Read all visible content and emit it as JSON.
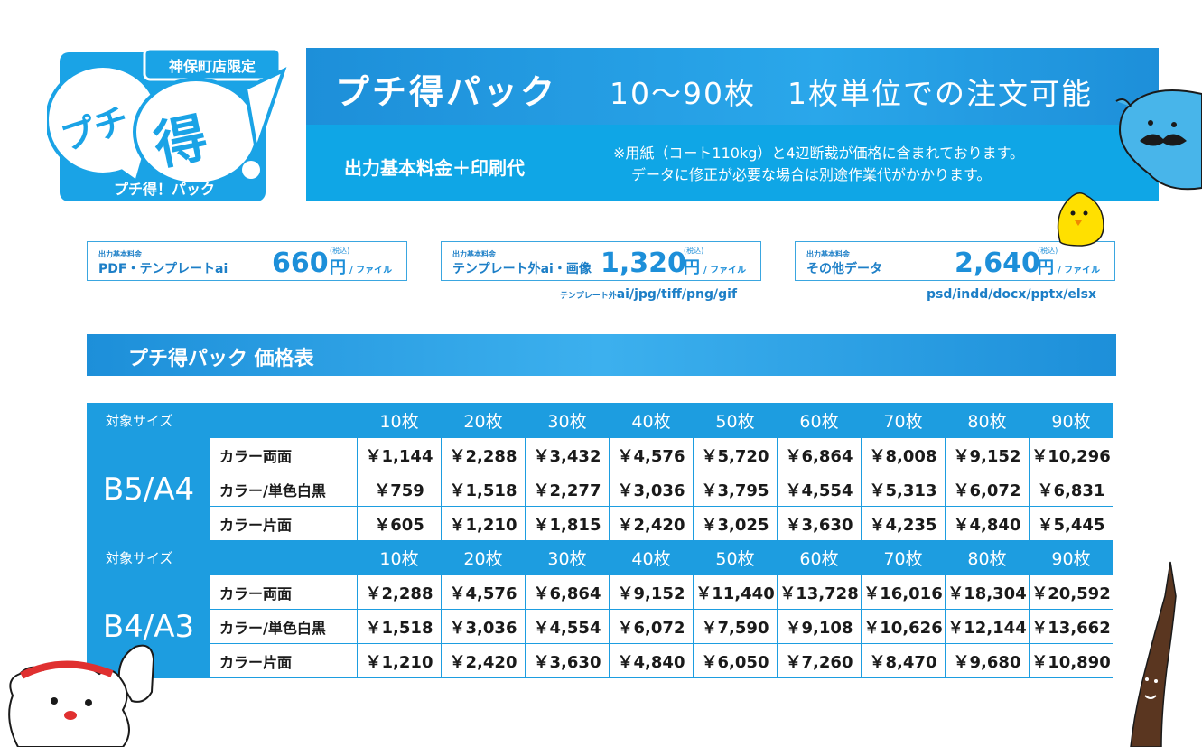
{
  "logo": {
    "limited": "神保町店限定",
    "puchi": "プチ",
    "toku": "得",
    "subtitle": "プチ得！パック"
  },
  "hero": {
    "title": "プチ得パック",
    "subtitle": "10〜90枚　1枚単位での注文可能",
    "formula": "出力基本料金＋印刷代",
    "note1": "※用紙（コート110kg）と4辺断裁が価格に含まれております。",
    "note2": "データに修正が必要な場合は別途作業代がかかります。"
  },
  "cards": [
    {
      "small": "出力基本料金",
      "name": "PDF・テンプレートai",
      "price": "660",
      "yen": "円",
      "tax": "(税込)",
      "unit": "/ ファイル",
      "formats_prefix": "",
      "formats": ""
    },
    {
      "small": "出力基本料金",
      "name": "テンプレート外ai・画像",
      "price": "1,320",
      "yen": "円",
      "tax": "(税込)",
      "unit": "/ ファイル",
      "formats_prefix": "テンプレート外",
      "formats": "ai/jpg/tiff/png/gif"
    },
    {
      "small": "出力基本料金",
      "name": "その他データ",
      "price": "2,640",
      "yen": "円",
      "tax": "(税込)",
      "unit": "/ ファイル",
      "formats_prefix": "",
      "formats": "psd/indd/docx/pptx/elsx"
    }
  ],
  "section": {
    "title": "プチ得パック 価格表"
  },
  "table": {
    "header_label": "対象サイズ",
    "quantities": [
      "10枚",
      "20枚",
      "30枚",
      "40枚",
      "50枚",
      "60枚",
      "70枚",
      "80枚",
      "90枚"
    ],
    "groups": [
      {
        "size": "B5/A4",
        "rows": [
          {
            "label": "カラー両面",
            "prices": [
              "￥1,144",
              "￥2,288",
              "￥3,432",
              "￥4,576",
              "￥5,720",
              "￥6,864",
              "￥8,008",
              "￥9,152",
              "￥10,296"
            ]
          },
          {
            "label": "カラー/単色白黒",
            "prices": [
              "￥759",
              "￥1,518",
              "￥2,277",
              "￥3,036",
              "￥3,795",
              "￥4,554",
              "￥5,313",
              "￥6,072",
              "￥6,831"
            ]
          },
          {
            "label": "カラー片面",
            "prices": [
              "￥605",
              "￥1,210",
              "￥1,815",
              "￥2,420",
              "￥3,025",
              "￥3,630",
              "￥4,235",
              "￥4,840",
              "￥5,445"
            ]
          }
        ]
      },
      {
        "size": "B4/A3",
        "rows": [
          {
            "label": "カラー両面",
            "prices": [
              "￥2,288",
              "￥4,576",
              "￥6,864",
              "￥9,152",
              "￥11,440",
              "￥13,728",
              "￥16,016",
              "￥18,304",
              "￥20,592"
            ]
          },
          {
            "label": "カラー/単色白黒",
            "prices": [
              "￥1,518",
              "￥3,036",
              "￥4,554",
              "￥6,072",
              "￥7,590",
              "￥9,108",
              "￥10,626",
              "￥12,144",
              "￥13,662"
            ]
          },
          {
            "label": "カラー片面",
            "prices": [
              "￥1,210",
              "￥2,420",
              "￥3,630",
              "￥4,840",
              "￥6,050",
              "￥7,260",
              "￥8,470",
              "￥9,680",
              "￥10,890"
            ]
          }
        ]
      }
    ]
  },
  "colors": {
    "primary": "#1d9de0",
    "dark": "#1d8fd9",
    "light": "#0fa6e6"
  },
  "characters": [
    "blue-mustache-character-icon",
    "yellow-chick-character-icon",
    "white-bear-character-icon",
    "stick-character-icon"
  ]
}
